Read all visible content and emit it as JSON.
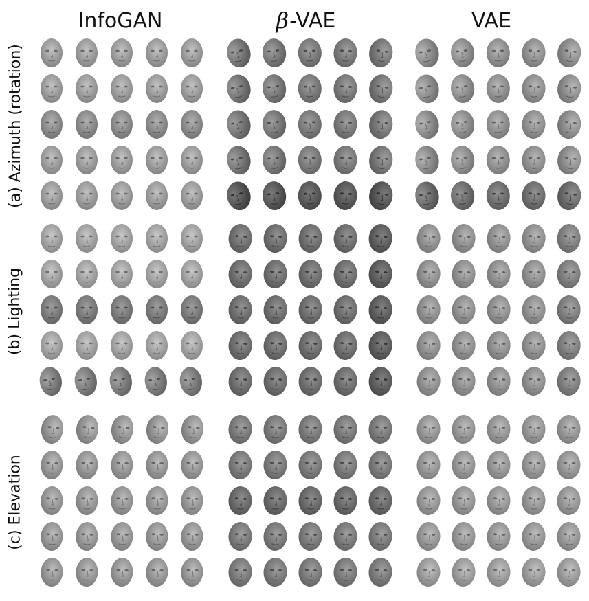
{
  "columns": [
    {
      "id": "infogan",
      "title": "InfoGAN",
      "prefix": ""
    },
    {
      "id": "beta-vae",
      "title": "-VAE",
      "prefix": "β"
    },
    {
      "id": "vae",
      "title": "VAE",
      "prefix": ""
    }
  ],
  "rows": [
    {
      "id": "azimuth",
      "label": "(a) Azimuth (rotation)"
    },
    {
      "id": "lighting",
      "label": "(b) Lighting"
    },
    {
      "id": "elevation",
      "label": "(c) Elevation"
    }
  ],
  "grid": {
    "rows_per_panel": 5,
    "faces_per_row": 5
  },
  "colors": {
    "background": "#ffffff",
    "text": "#111111",
    "face_light": "#d8d8d8",
    "face_dark": "#3a3a3a"
  }
}
